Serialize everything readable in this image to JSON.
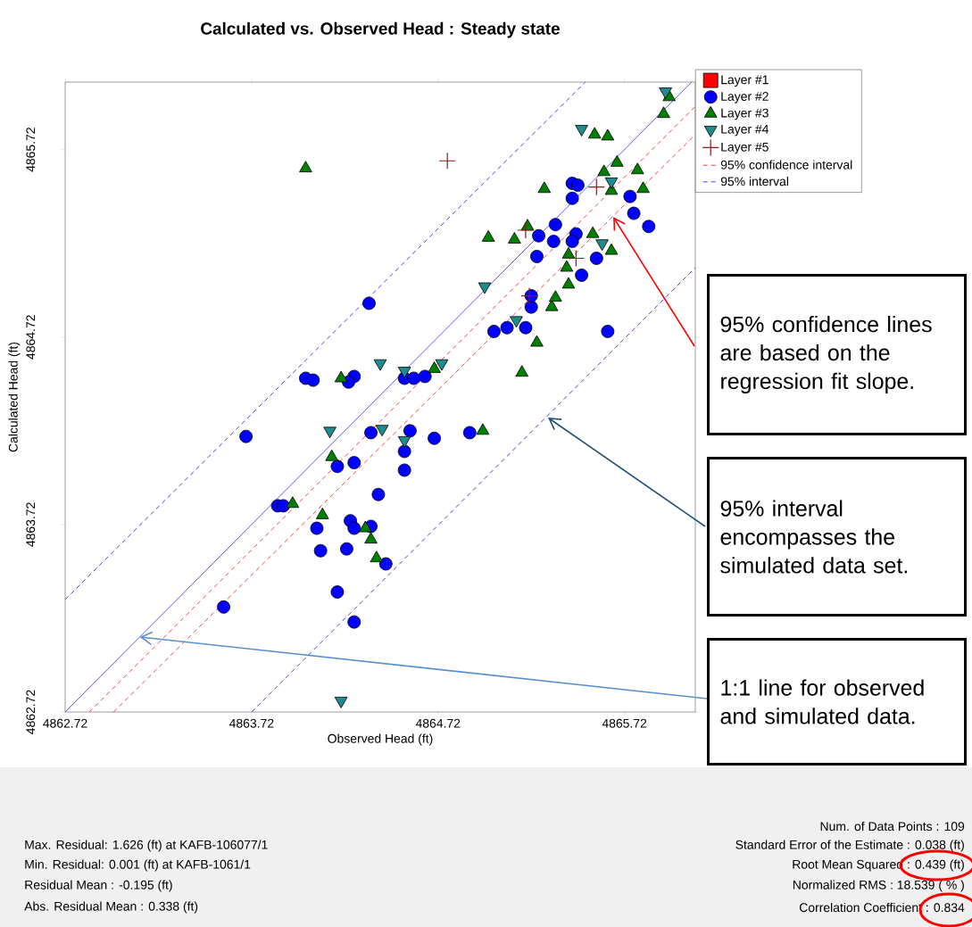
{
  "chart_data": {
    "type": "scatter",
    "title": "Calculated vs. Observed Head : Steady state",
    "xlabel": "Observed Head (ft)",
    "ylabel": "Calculated Head (ft)",
    "xlim": [
      4862.72,
      4866.1
    ],
    "ylim": [
      4862.72,
      4866.08
    ],
    "xticks": [
      4862.72,
      4863.72,
      4864.72,
      4865.72
    ],
    "yticks": [
      4862.72,
      4863.72,
      4864.72,
      4865.72
    ],
    "legend": "top right",
    "series": [
      {
        "name": "Layer #1",
        "marker": "square",
        "color": "#ff0000"
      },
      {
        "name": "Layer #2",
        "marker": "circle",
        "color": "#0000ff",
        "x": [
          4863.57,
          4863.69,
          4863.86,
          4863.89,
          4864.01,
          4864.05,
          4864.07,
          4864.09,
          4864.18,
          4864.18,
          4864.27,
          4864.25,
          4864.27,
          4864.23,
          4864.27,
          4864.27,
          4864.24,
          4864.36,
          4864.35,
          4864.36,
          4864.4,
          4864.44,
          4864.54,
          4864.54,
          4864.57,
          4864.54,
          4864.59,
          4864.65,
          4864.7,
          4864.89,
          4865.02,
          4865.09,
          4865.19,
          4865.22,
          4865.22,
          4865.25,
          4865.26,
          4865.34,
          4865.35,
          4865.46,
          4865.44,
          4865.44,
          4865.47,
          4865.44,
          4865.49,
          4865.57,
          4865.63,
          4865.75,
          4865.77,
          4865.85
        ],
        "values": [
          4863.28,
          4864.19,
          4863.82,
          4863.82,
          4864.5,
          4864.49,
          4863.7,
          4863.58,
          4863.36,
          4864.03,
          4864.05,
          4863.74,
          4863.7,
          4863.59,
          4863.2,
          4864.51,
          4864.48,
          4863.71,
          4864.9,
          4864.21,
          4863.88,
          4863.51,
          4864.01,
          4864.11,
          4864.22,
          4864.5,
          4864.5,
          4864.51,
          4864.18,
          4864.21,
          4864.75,
          4864.77,
          4864.77,
          4864.88,
          4864.94,
          4865.15,
          4865.26,
          4865.23,
          4865.32,
          4865.27,
          4865.23,
          4865.54,
          4865.53,
          4865.46,
          4865.05,
          4865.14,
          4864.75,
          4865.47,
          4865.38,
          4865.31
        ]
      },
      {
        "name": "Layer #3",
        "marker": "triangle",
        "color": "#008000",
        "x": [
          4864.01,
          4864.2,
          4864.15,
          4863.94,
          4864.1,
          4864.33,
          4864.36,
          4864.39,
          4864.7,
          4864.96,
          4864.99,
          4865.13,
          4865.17,
          4865.25,
          4865.33,
          4865.35,
          4865.42,
          4865.41,
          4865.42,
          4865.2,
          4865.29,
          4865.55,
          4865.65,
          4865.65,
          4865.61,
          4865.68,
          4865.79,
          4865.82,
          4865.56,
          4865.63,
          4865.93,
          4865.96
        ],
        "values": [
          4865.62,
          4864.5,
          4864.08,
          4863.83,
          4863.77,
          4863.7,
          4863.64,
          4863.54,
          4864.55,
          4864.22,
          4865.25,
          4865.24,
          4864.53,
          4864.69,
          4864.88,
          4864.93,
          4865.0,
          4865.09,
          4865.16,
          4865.31,
          4865.51,
          4865.27,
          4865.18,
          4865.5,
          4865.6,
          4865.65,
          4865.61,
          4865.51,
          4865.8,
          4865.79,
          4865.91,
          4866.0
        ]
      },
      {
        "name": "Layer #4",
        "marker": "triangle-down",
        "color": "#1e8c8c",
        "x": [
          4865.94,
          4865.49,
          4865.65,
          4865.6,
          4864.97,
          4865.14,
          4864.41,
          4864.54,
          4864.74,
          4864.14,
          4864.42,
          4864.54,
          4864.2
        ],
        "values": [
          4866.03,
          4865.83,
          4865.55,
          4865.22,
          4864.99,
          4864.81,
          4864.58,
          4864.54,
          4864.58,
          4864.22,
          4864.23,
          4864.17,
          4862.78
        ]
      },
      {
        "name": "Layer #5",
        "marker": "cross",
        "color": "#8b1a1a",
        "x": [
          4864.77,
          4865.57,
          4865.19,
          4865.46,
          4865.21
        ],
        "values": [
          4865.66,
          4865.52,
          4865.29,
          4865.14,
          4864.94
        ]
      },
      {
        "type": "line",
        "line_style": "solid",
        "color": "#5a5aff",
        "x": [
          4862.72,
          4866.08
        ],
        "values": [
          4862.72,
          4866.08
        ]
      },
      {
        "name": "95% confidence interval",
        "type": "line",
        "line_style": "dashed",
        "color": "#ff4040",
        "x": [
          4862.85,
          4866.1
        ],
        "values": [
          4862.72,
          4865.95
        ]
      },
      {
        "type": "line",
        "line_style": "dashed",
        "color": "#ff4040",
        "x": [
          4862.98,
          4866.1
        ],
        "values": [
          4862.72,
          4865.8
        ]
      },
      {
        "name": "95% interval",
        "type": "line",
        "line_style": "dashed",
        "color": "#4040ff",
        "x": [
          4862.72,
          4865.51
        ],
        "values": [
          4863.32,
          4866.08
        ]
      },
      {
        "type": "line",
        "line_style": "dashed",
        "color": "#4040ff",
        "x": [
          4863.72,
          4866.1
        ],
        "values": [
          4862.72,
          4865.09
        ]
      }
    ],
    "annotations": [
      {
        "text": "95% confidence lines are based on the regression fit slope.",
        "x": 4865.66,
        "y": 4865.36
      },
      {
        "text": "95% interval encompasses the simulated data set.",
        "x": 4865.31,
        "y": 4864.29
      },
      {
        "text": "1:1 line for observed and simulated data.",
        "x": 4863.12,
        "y": 4863.12
      },
      "Max. Residual: 1.626 (ft) at KAFB-106077/1",
      "Min. Residual: 0.001 (ft) at KAFB-1061/1",
      "Residual Mean : -0.195 (ft)",
      "Abs. Residual Mean : 0.338 (ft)",
      "Num. of Data Points : 109",
      "Standard Error of the Estimate : 0.038 (ft)",
      "Root Mean Squared : 0.439 (ft)",
      "Normalized RMS : 18.539 ( % )",
      "Correlation Coefficient : 0.834"
    ]
  }
}
